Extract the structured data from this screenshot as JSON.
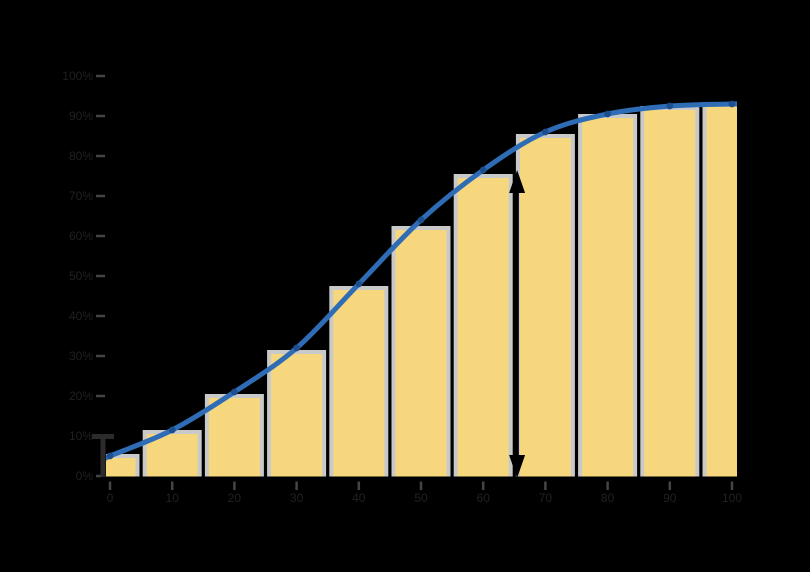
{
  "colors": {
    "background": "#000000",
    "bar_fill": "#f6d77d",
    "bar_edge": "#c9c9c9",
    "line": "#2e6cb5",
    "marker": "#1d4f8f",
    "arrow": "#000000",
    "interval_marker": "#2b2b2b",
    "tick_mark": "#454545",
    "tick_label": "#202020",
    "axis_line": "#000000"
  },
  "chart_data": {
    "type": "bar",
    "title": "",
    "xlabel": "",
    "ylabel": "",
    "legend": "none",
    "grid": "off",
    "labels_estimated": true,
    "categories": [
      "0",
      "10",
      "20",
      "30",
      "40",
      "50",
      "60",
      "70",
      "80",
      "90",
      "100"
    ],
    "series": [
      {
        "name": "cumulative-frequency-bars",
        "type": "bar",
        "values": [
          5,
          11,
          20,
          31,
          47,
          62,
          75,
          85,
          90,
          92,
          93
        ]
      },
      {
        "name": "cumulative-s-curve",
        "type": "line",
        "values": [
          5,
          11.5,
          21,
          32,
          48,
          64,
          76.5,
          86,
          90.5,
          92.5,
          93
        ]
      }
    ],
    "ylim": [
      0,
      100
    ],
    "y_ticks": [
      "0%",
      "10%",
      "20%",
      "30%",
      "40%",
      "50%",
      "60%",
      "70%",
      "80%",
      "90%",
      "100%"
    ],
    "annotations": [
      {
        "type": "double-headed-vertical-arrow",
        "between_categories": [
          "60",
          "70"
        ],
        "from_value": 0,
        "to_value": 76
      },
      {
        "type": "interval-marker",
        "at": "left-axis-bottom",
        "from_value": 0,
        "to_value": 10
      }
    ]
  }
}
